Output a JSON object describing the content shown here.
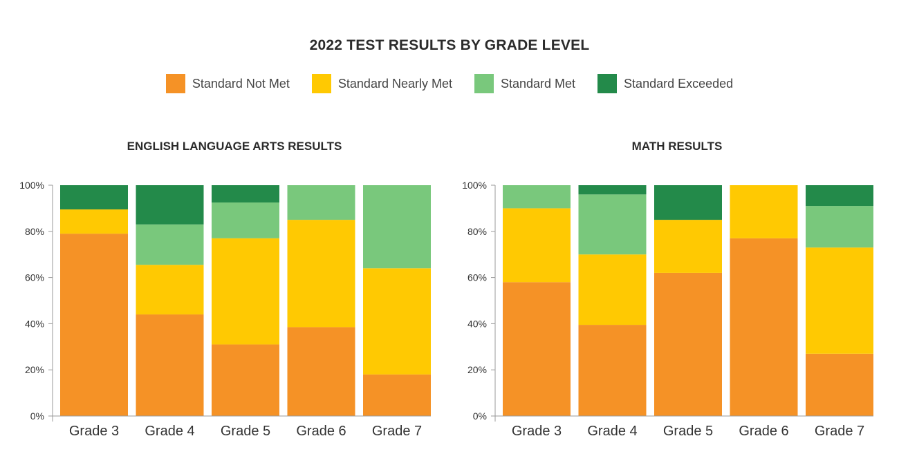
{
  "title": "2022 TEST RESULTS BY GRADE LEVEL",
  "legend": [
    {
      "label": "Standard Not Met",
      "color": "#f59226"
    },
    {
      "label": "Standard Nearly Met",
      "color": "#ffc902"
    },
    {
      "label": "Standard Met",
      "color": "#79c87c"
    },
    {
      "label": "Standard Exceeded",
      "color": "#238a4a"
    }
  ],
  "chart_data": [
    {
      "type": "bar",
      "stacked": true,
      "title": "ENGLISH LANGUAGE ARTS RESULTS",
      "categories": [
        "Grade 3",
        "Grade 4",
        "Grade 5",
        "Grade 6",
        "Grade 7"
      ],
      "ylim": [
        0,
        100
      ],
      "yticks": [
        "0%",
        "20%",
        "40%",
        "60%",
        "80%",
        "100%"
      ],
      "series": [
        {
          "name": "Standard Not Met",
          "values": [
            79,
            44,
            31,
            38.5,
            18
          ]
        },
        {
          "name": "Standard Nearly Met",
          "values": [
            10.5,
            21.5,
            46,
            46.5,
            46
          ]
        },
        {
          "name": "Standard Met",
          "values": [
            0,
            17.5,
            15.5,
            15,
            36
          ]
        },
        {
          "name": "Standard Exceeded",
          "values": [
            10.5,
            17,
            7.5,
            0,
            0
          ]
        }
      ]
    },
    {
      "type": "bar",
      "stacked": true,
      "title": "MATH RESULTS",
      "categories": [
        "Grade 3",
        "Grade 4",
        "Grade 5",
        "Grade 6",
        "Grade 7"
      ],
      "ylim": [
        0,
        100
      ],
      "yticks": [
        "0%",
        "20%",
        "40%",
        "60%",
        "80%",
        "100%"
      ],
      "series": [
        {
          "name": "Standard Not Met",
          "values": [
            58,
            39.5,
            62,
            77,
            27
          ]
        },
        {
          "name": "Standard Nearly Met",
          "values": [
            32,
            30.5,
            23,
            23,
            46
          ]
        },
        {
          "name": "Standard Met",
          "values": [
            10,
            26,
            0,
            0,
            18
          ]
        },
        {
          "name": "Standard Exceeded",
          "values": [
            0,
            4,
            15,
            0,
            9
          ]
        }
      ]
    }
  ]
}
